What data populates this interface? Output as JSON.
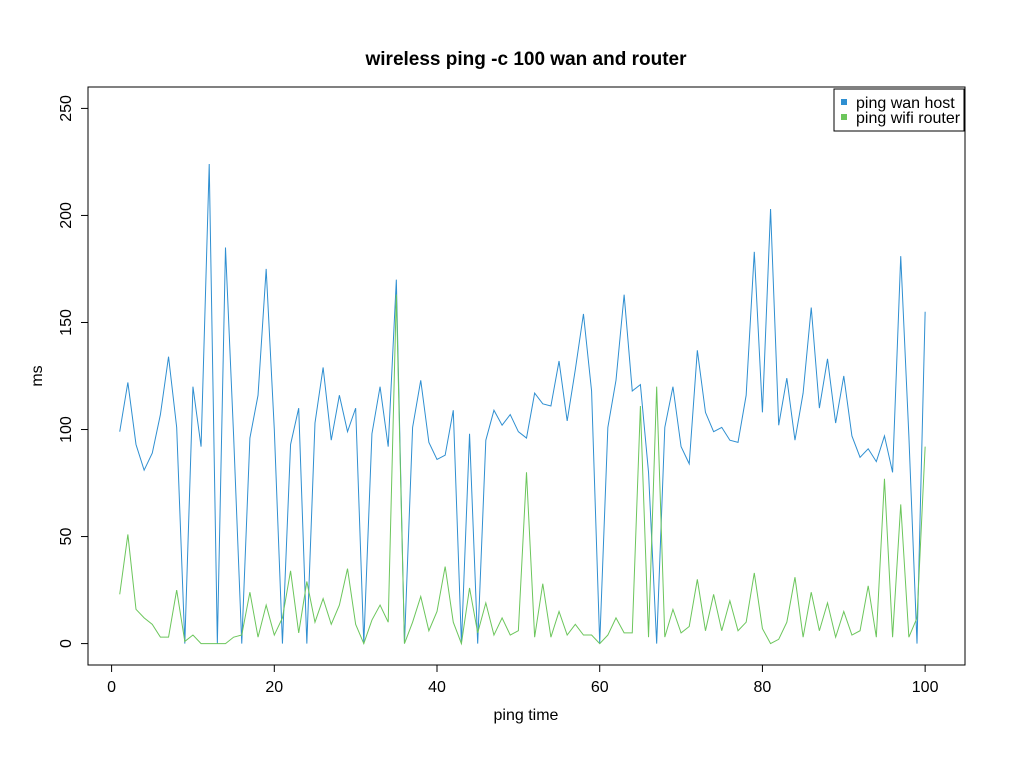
{
  "chart_data": {
    "type": "line",
    "title": "wireless ping -c 100 wan and router",
    "xlabel": "ping time",
    "ylabel": "ms",
    "xlim": [
      -2.9,
      104.9
    ],
    "ylim": [
      -10,
      260
    ],
    "xticks": [
      0,
      20,
      40,
      60,
      80,
      100
    ],
    "yticks": [
      0,
      50,
      100,
      150,
      200,
      250
    ],
    "grid": false,
    "legend_position": "top-right",
    "x": [
      1,
      2,
      3,
      4,
      5,
      6,
      7,
      8,
      9,
      10,
      11,
      12,
      13,
      14,
      15,
      16,
      17,
      18,
      19,
      20,
      21,
      22,
      23,
      24,
      25,
      26,
      27,
      28,
      29,
      30,
      31,
      32,
      33,
      34,
      35,
      36,
      37,
      38,
      39,
      40,
      41,
      42,
      43,
      44,
      45,
      46,
      47,
      48,
      49,
      50,
      51,
      52,
      53,
      54,
      55,
      56,
      57,
      58,
      59,
      60,
      61,
      62,
      63,
      64,
      65,
      66,
      67,
      68,
      69,
      70,
      71,
      72,
      73,
      74,
      75,
      76,
      77,
      78,
      79,
      80,
      81,
      82,
      83,
      84,
      85,
      86,
      87,
      88,
      89,
      90,
      91,
      92,
      93,
      94,
      95,
      96,
      97,
      98,
      99,
      100
    ],
    "series": [
      {
        "name": "ping wan host",
        "color": "#2f8fd1",
        "values": [
          99,
          122,
          93,
          81,
          89,
          107,
          134,
          101,
          0,
          120,
          92,
          224,
          0,
          185,
          97,
          0,
          96,
          116,
          175,
          100,
          0,
          93,
          110,
          0,
          103,
          129,
          95,
          116,
          99,
          110,
          0,
          98,
          120,
          92,
          170,
          0,
          101,
          123,
          94,
          86,
          88,
          109,
          0,
          98,
          0,
          95,
          109,
          102,
          107,
          99,
          96,
          117,
          112,
          111,
          132,
          104,
          128,
          154,
          118,
          0,
          101,
          123,
          163,
          118,
          121,
          80,
          0,
          101,
          120,
          92,
          84,
          137,
          108,
          99,
          101,
          95,
          94,
          116,
          183,
          108,
          203,
          102,
          124,
          95,
          117,
          157,
          110,
          133,
          103,
          125,
          97,
          87,
          91,
          85,
          97,
          80,
          181,
          97,
          0,
          155
        ]
      },
      {
        "name": "ping wifi router",
        "color": "#6cc65c",
        "values": [
          23,
          51,
          16,
          12,
          9,
          3,
          3,
          25,
          1,
          4,
          0,
          0,
          0,
          0,
          3,
          4,
          24,
          3,
          18,
          4,
          12,
          34,
          5,
          29,
          10,
          21,
          9,
          18,
          35,
          9,
          0,
          11,
          18,
          10,
          163,
          0,
          10,
          22,
          6,
          15,
          36,
          10,
          0,
          26,
          5,
          19,
          4,
          12,
          4,
          6,
          80,
          3,
          28,
          3,
          15,
          4,
          9,
          4,
          4,
          0,
          4,
          12,
          5,
          5,
          111,
          3,
          120,
          3,
          16,
          5,
          8,
          30,
          6,
          23,
          6,
          20,
          6,
          10,
          33,
          7,
          0,
          2,
          10,
          31,
          3,
          24,
          6,
          19,
          3,
          15,
          4,
          6,
          27,
          3,
          77,
          3,
          65,
          3,
          12,
          92
        ]
      }
    ]
  }
}
